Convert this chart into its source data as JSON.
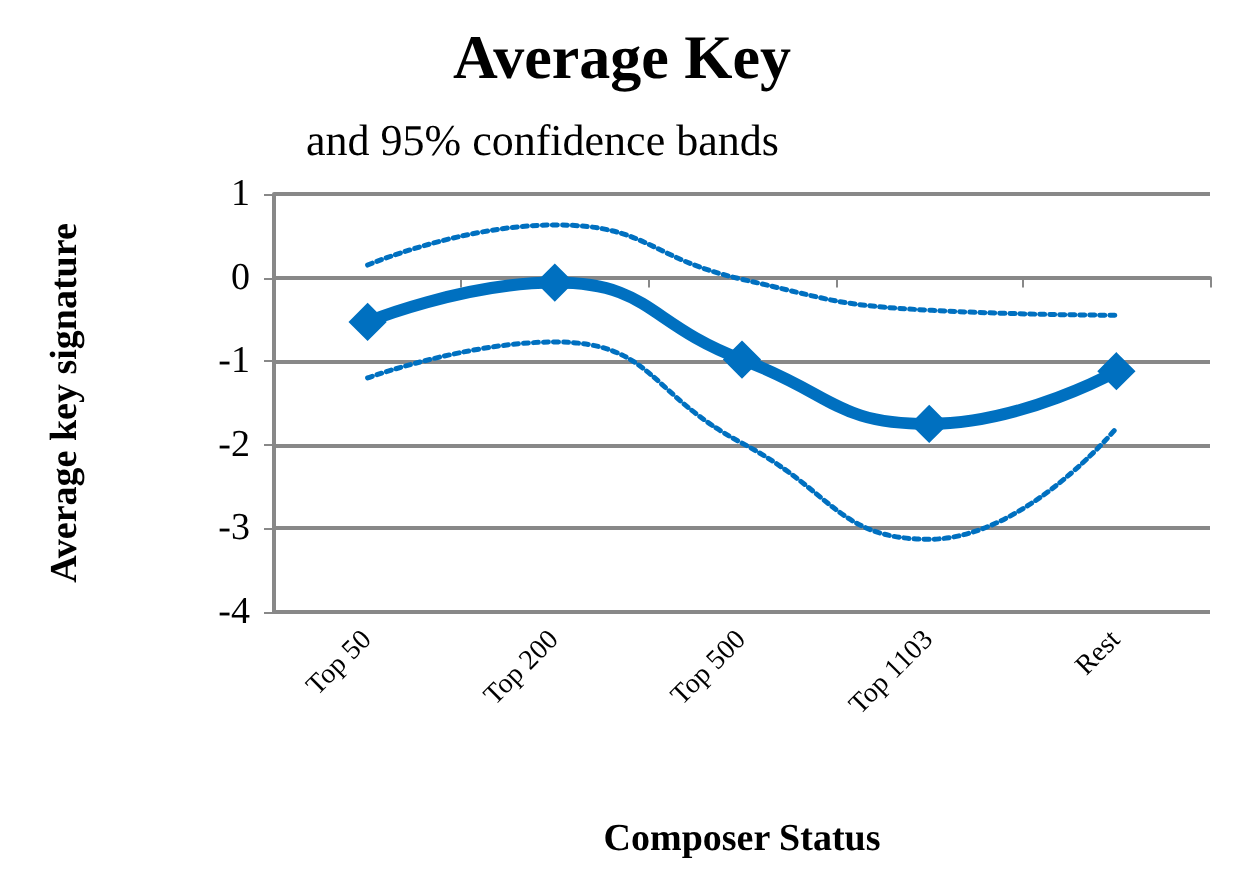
{
  "chart_data": {
    "type": "line",
    "title": "Average Key",
    "subtitle": "and 95% confidence bands",
    "xlabel": "Composer Status",
    "ylabel": "Average key signature",
    "categories": [
      "Top 50",
      "Top 200",
      "Top 500",
      "Top 1103",
      "Rest"
    ],
    "series": [
      {
        "color": "#0070c0",
        "values": [
          -0.53,
          -0.06,
          -0.98,
          -1.75,
          -1.12
        ],
        "marker": "diamond",
        "line_style": "solid"
      },
      {
        "color": "#0070c0",
        "values": [
          0.15,
          0.63,
          -0.02,
          -0.39,
          -0.45
        ],
        "marker": "none",
        "line_style": "dotted"
      },
      {
        "color": "#0070c0",
        "values": [
          -1.2,
          -0.77,
          -1.98,
          -3.13,
          -1.8
        ],
        "marker": "none",
        "line_style": "dotted"
      }
    ],
    "ylim": [
      -4,
      1
    ],
    "yticks": [
      -4,
      -3,
      -2,
      -1,
      0,
      1
    ],
    "grid": "y"
  }
}
